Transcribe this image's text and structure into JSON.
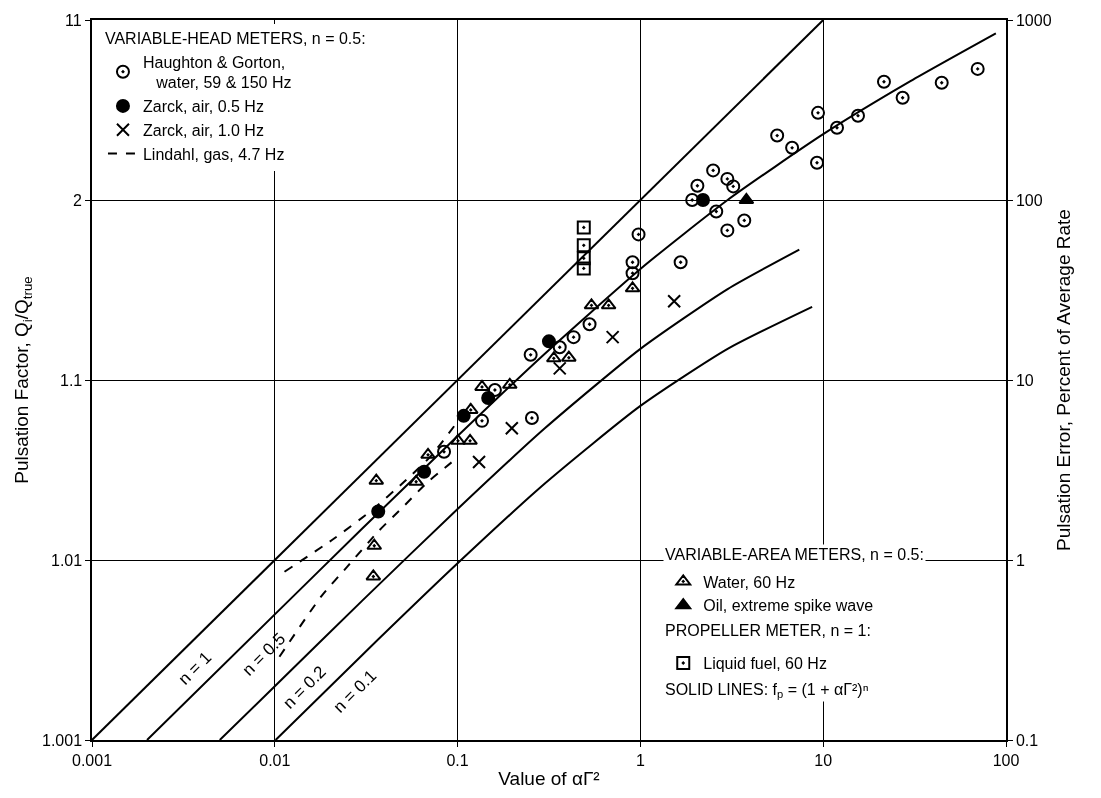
{
  "chart_data": {
    "type": "scatter",
    "xlabel": "Value of αΓ²",
    "ylabel": "Pulsation Error, Percent of Average Rate",
    "y2label": "Pulsation Factor, Q$_{i}$/Q$_{true}$",
    "legend_title": "VARIABLE-HEAD METERS, n = 0.5:",
    "log": "xy",
    "xlim": [
      0.001,
      100
    ],
    "xticks": [
      0.001,
      0.01,
      0.1,
      1,
      10,
      100
    ],
    "ylim": [
      0.1,
      1000
    ],
    "yticks": [
      0.1,
      1,
      10,
      100,
      1000
    ],
    "grid": true,
    "legend": "top left",
    "series": [
      {
        "name": "Haughton & Gorton, water, 59 & 150 Hz",
        "marker": "circle-open-dot",
        "color": "#000000",
        "x": [
          0.0843,
          0.136,
          0.16,
          0.255,
          0.251,
          0.362,
          0.431,
          0.527,
          0.906,
          0.906,
          0.977,
          1.66,
          1.92,
          2.05,
          2.5,
          2.6,
          2.99,
          3.22,
          2.99,
          3.7,
          5.6,
          6.76,
          9.25,
          9.37,
          11.9,
          15.5,
          21.5,
          27.2,
          44.5,
          70
        ],
        "values": [
          3.99,
          5.93,
          8.8,
          6.15,
          13.8,
          15.2,
          17.3,
          20.4,
          45.1,
          39.2,
          64.4,
          45.1,
          100,
          120,
          146,
          86.3,
          131,
          119,
          67.8,
          77,
          228,
          195,
          161,
          305,
          252,
          294,
          454,
          370,
          448,
          535
        ]
      },
      {
        "name": "Zarck, air, 0.5 Hz",
        "marker": "circle",
        "color": "#000000",
        "x": [
          0.0368,
          0.0656,
          0.108,
          0.147,
          0.316,
          2.2
        ],
        "values": [
          1.86,
          3.09,
          6.32,
          7.95,
          16.4,
          100
        ]
      },
      {
        "name": "Zarck, air, 1.0 Hz",
        "marker": "x",
        "color": "#000000",
        "x": [
          0.131,
          0.198,
          0.362,
          0.705,
          1.53
        ],
        "values": [
          3.5,
          5.4,
          11.6,
          17.3,
          27.4
        ]
      },
      {
        "name": "Lindahl, gas, 4.7 Hz",
        "type": "line",
        "line_style": "dashed",
        "marker": "none",
        "color": "#000000",
        "x": [
          0.0113,
          0.0212,
          0.0337,
          0.051,
          0.0716,
          0.118
        ],
        "values": [
          0.86,
          1.32,
          1.88,
          2.72,
          3.79,
          7.36
        ]
      },
      {
        "type": "line",
        "line_style": "dashed",
        "marker": "none",
        "color": "#000000",
        "x": [
          0.0106,
          0.018,
          0.0252,
          0.0368,
          0.051,
          0.0689,
          0.098
        ],
        "values": [
          0.29,
          0.63,
          0.93,
          1.44,
          2.0,
          2.72,
          3.65
        ]
      },
      {
        "name": "Water, 60 Hz",
        "marker": "triangle-open-dot",
        "color": "#000000",
        "x": [
          0.0359,
          0.035,
          0.0346,
          0.0689,
          0.0593,
          0.1005,
          0.117,
          0.118,
          0.136,
          0.193,
          0.336,
          0.406,
          0.54,
          0.67,
          0.906
        ],
        "values": [
          2.76,
          1.2,
          0.81,
          3.84,
          2.72,
          4.59,
          4.59,
          6.82,
          9.15,
          9.4,
          13.2,
          13.3,
          26,
          26,
          32.3
        ]
      },
      {
        "name": "Oil, extreme spike wave",
        "marker": "triangle",
        "color": "#000000",
        "x": [
          3.8
        ],
        "values": [
          100
        ]
      },
      {
        "name": "Liquid fuel, 60 Hz",
        "marker": "square-open-dot",
        "color": "#000000",
        "x": [
          0.49,
          0.49,
          0.49,
          0.49
        ],
        "values": [
          70.4,
          56,
          47.4,
          41.7
        ]
      },
      {
        "name": "n = 1",
        "type": "line",
        "line_style": "solid",
        "marker": "none",
        "color": "#000000",
        "x": [
          0.001,
          10
        ],
        "values": [
          0.1,
          1000
        ]
      },
      {
        "name": "n = 0.5",
        "type": "line",
        "line_style": "solid",
        "marker": "none",
        "color": "#000000",
        "x": [
          0.002,
          0.01,
          0.03,
          0.1,
          0.3,
          1,
          3,
          10,
          30,
          88
        ],
        "values": [
          0.1,
          0.499,
          1.49,
          4.88,
          14.0,
          41.4,
          100,
          232,
          457,
          842
        ]
      },
      {
        "name": "n = 0.2",
        "type": "line",
        "line_style": "solid",
        "marker": "none",
        "color": "#000000",
        "x": [
          0.005,
          0.01,
          0.03,
          0.1,
          0.3,
          1,
          3,
          7.4
        ],
        "values": [
          0.1,
          0.199,
          0.593,
          1.92,
          5.39,
          14.9,
          32.0,
          53.0
        ]
      },
      {
        "name": "n = 0.1",
        "type": "line",
        "line_style": "solid",
        "marker": "none",
        "color": "#000000",
        "x": [
          0.0101,
          0.03,
          0.1,
          0.3,
          1,
          3,
          8.7
        ],
        "values": [
          0.1,
          0.296,
          0.958,
          2.66,
          7.18,
          14.9,
          25.5
        ]
      }
    ],
    "annotations": [
      "1.001",
      "1.01",
      "1.1",
      "2",
      "11",
      "VARIABLE-AREA METERS, n = 0.5:",
      "PROPELLER METER, n = 1:",
      "SOLID LINES: f$_{p}$ = (1 + αΓ²)ⁿ"
    ]
  }
}
